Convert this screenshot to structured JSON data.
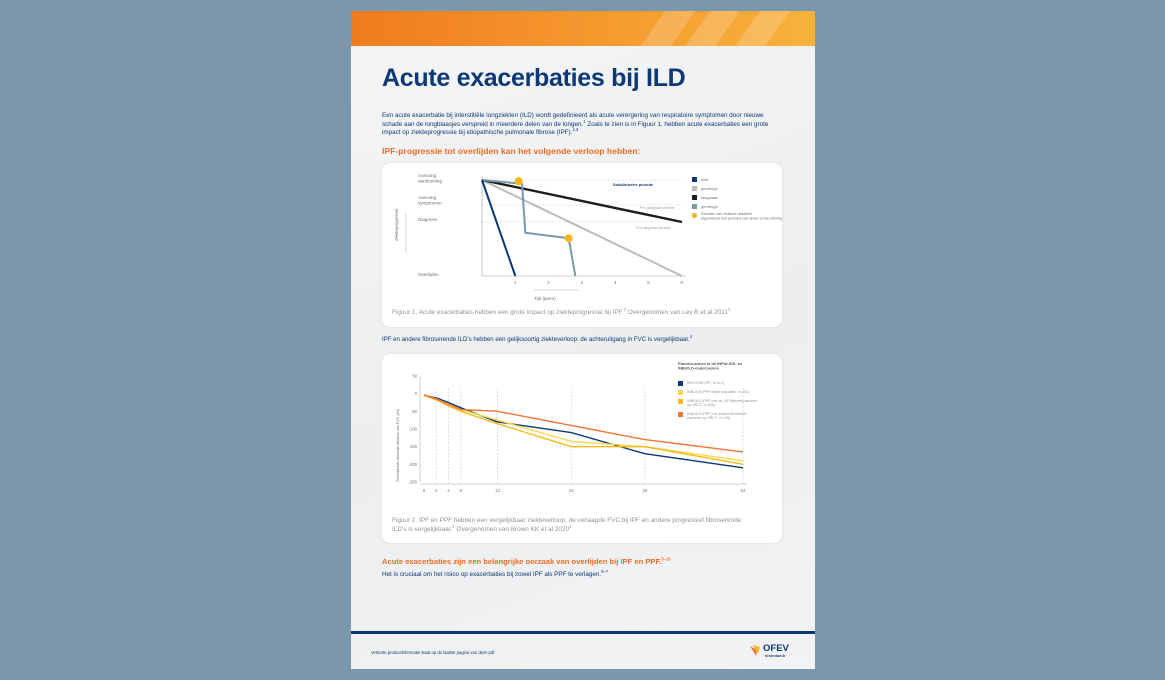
{
  "document": {
    "title": "Acute exacerbaties bij ILD",
    "intro": "Een acute exacerbatie bij interstitiële longziekten (ILD) wordt gedefinieerd als acute verergering van respiratoire symptomen door nieuwe schade aan de longblaasjes verspreid in meerdere delen van de longen.",
    "intro_ref1": "1",
    "intro_cont": " Zoals te zien is in Figuur 1, hebben acute exacerbaties een grote impact op ziekteprogressie bij idiopathische pulmonale fibrose (IPF).",
    "intro_ref2": "2,3",
    "section1_heading": "IPF-progressie tot overlijden kan het volgende verloop hebben:",
    "figure1_caption": "Figuur 1. Acute exacerbaties hebben een grote impact op ziekteprogressie bij IPF.",
    "figure1_caption_ref1": "2",
    "figure1_caption_cont": " Overgenomen van Ley B et al 2011",
    "figure1_caption_ref2": "3",
    "section2_heading": "IPF en andere fibroserende ILD’s hebben een gelijksoortig ziekteverloop: de achteruitgang in FVC is vergelijkbaar.",
    "section2_ref": "4",
    "figure2_caption_l1": "Figuur 2. IPF en PPF hebben een vergelijkbaar ziekteverloop; de verlaagde FVC bij IPF en andere progressief fibroserende",
    "figure2_caption_l2": "ILD’s is vergelijkbaar.",
    "figure2_caption_ref1": "4",
    "figure2_caption_cont": " Overgenomen van Brown KK et al 2020",
    "figure2_caption_ref2": "4",
    "section3_heading": "Acute exacerbaties zijn een belangrijke oorzaak van overlijden bij IPF en PPF.",
    "section3_ref": "5–10",
    "closing_text": "Het is cruciaal om het risico op exacerbaties bij zowel IPF als PPF te verlagen.",
    "closing_ref": "5–7",
    "footer": "Verkorte productinformatie staat op de laatste pagina van deze pdf",
    "logo_text": "OFEV",
    "logo_sub": "nintedanib"
  },
  "colors": {
    "navy": "#0c3875",
    "orange": "#f06c22",
    "gray_line": "#b8bcc0",
    "black_line": "#1d1d1b",
    "teal_line": "#7898ab",
    "yellow_dot": "#f7b51b",
    "ppf_total": "#fdd94e",
    "ppf_uip": "#f8b91c",
    "ppf_other": "#f07336"
  },
  "chart_data": [
    {
      "type": "line",
      "ylabel": "Ziekteprogressie",
      "xlabel": "Tijd (jaren)",
      "x_ticks": [
        "1",
        "2",
        "3",
        "4",
        "5",
        "6"
      ],
      "y_stage_labels": [
        {
          "label": "Aanvang aandoening",
          "stage": 0
        },
        {
          "label": "Aanvang symptomen",
          "stage": 1
        },
        {
          "label": "Diagnose",
          "stage": 2
        },
        {
          "label": "Overlijden",
          "stage": 5
        }
      ],
      "period_labels": {
        "subclinical": "Subklinische periode",
        "pre_diagnosis_1": "Pre-diagnose periode",
        "pre_diagnosis_2": "Pre-diagnose periode"
      },
      "legend": [
        {
          "label": "snel",
          "color": "#0c3875"
        },
        {
          "label": "gemengd",
          "color": "#b8bcc0"
        },
        {
          "label": "langzaam",
          "color": "#1d1d1b"
        },
        {
          "label": "gemengd",
          "color": "#7898ab"
        },
        {
          "label": "Perioden van relatieve stabiliteit afgewisseld met perioden van acute verslechtering",
          "color": "#f7b51b"
        }
      ],
      "series": [
        {
          "name": "snel",
          "points": [
            [
              0,
              0
            ],
            [
              1,
              5
            ]
          ]
        },
        {
          "name": "gemengd",
          "points": [
            [
              0,
              0
            ],
            [
              6,
              5
            ]
          ]
        },
        {
          "name": "langzaam",
          "points": [
            [
              0,
              0
            ],
            [
              6,
              2
            ]
          ]
        },
        {
          "name": "gemengd",
          "points": [
            [
              0,
              0
            ],
            [
              1.2,
              0.15
            ],
            [
              1.3,
              2.6
            ],
            [
              2.6,
              2.9
            ],
            [
              2.8,
              5
            ]
          ]
        }
      ],
      "events": [
        [
          1.1,
          0.05
        ],
        [
          2.6,
          2.9
        ]
      ]
    },
    {
      "type": "line",
      "ylabel": "Gemiddelde absolute afname van FVC (ml)",
      "title": "Placebo-armen in de INPULSIS- en INBUILD-onderzoeken",
      "x": [
        0,
        2,
        4,
        6,
        12,
        24,
        36,
        52
      ],
      "x_ticks": [
        "0",
        "2",
        "4",
        "6",
        "12",
        "24",
        "36",
        "52"
      ],
      "y_ticks": [
        "50",
        "0",
        "-50",
        "-100",
        "-150",
        "-200",
        "-250"
      ],
      "ylim": [
        -250,
        50
      ],
      "series": [
        {
          "name": "INPULSIS (IPF, n=417)",
          "color": "#0c3875",
          "values": [
            -5,
            -12,
            -25,
            -40,
            -80,
            -110,
            -170,
            -210
          ]
        },
        {
          "name": "INBUILD (PPF totale populatie, n=331)",
          "color": "#fdd94e",
          "values": [
            -5,
            -15,
            -30,
            -45,
            -75,
            -135,
            -150,
            -190
          ]
        },
        {
          "name": "INBUILD (PPF met op UIP lijkende patronen op HRCT, n=206)",
          "color": "#f8b91c",
          "values": [
            -5,
            -18,
            -35,
            -50,
            -85,
            -150,
            -150,
            -200
          ]
        },
        {
          "name": "INBUILD (PPF met andere fibrotische patronen op HRCT, n=125)",
          "color": "#f07336",
          "values": [
            -3,
            -15,
            -30,
            -45,
            -50,
            -90,
            -130,
            -165
          ]
        }
      ]
    }
  ]
}
